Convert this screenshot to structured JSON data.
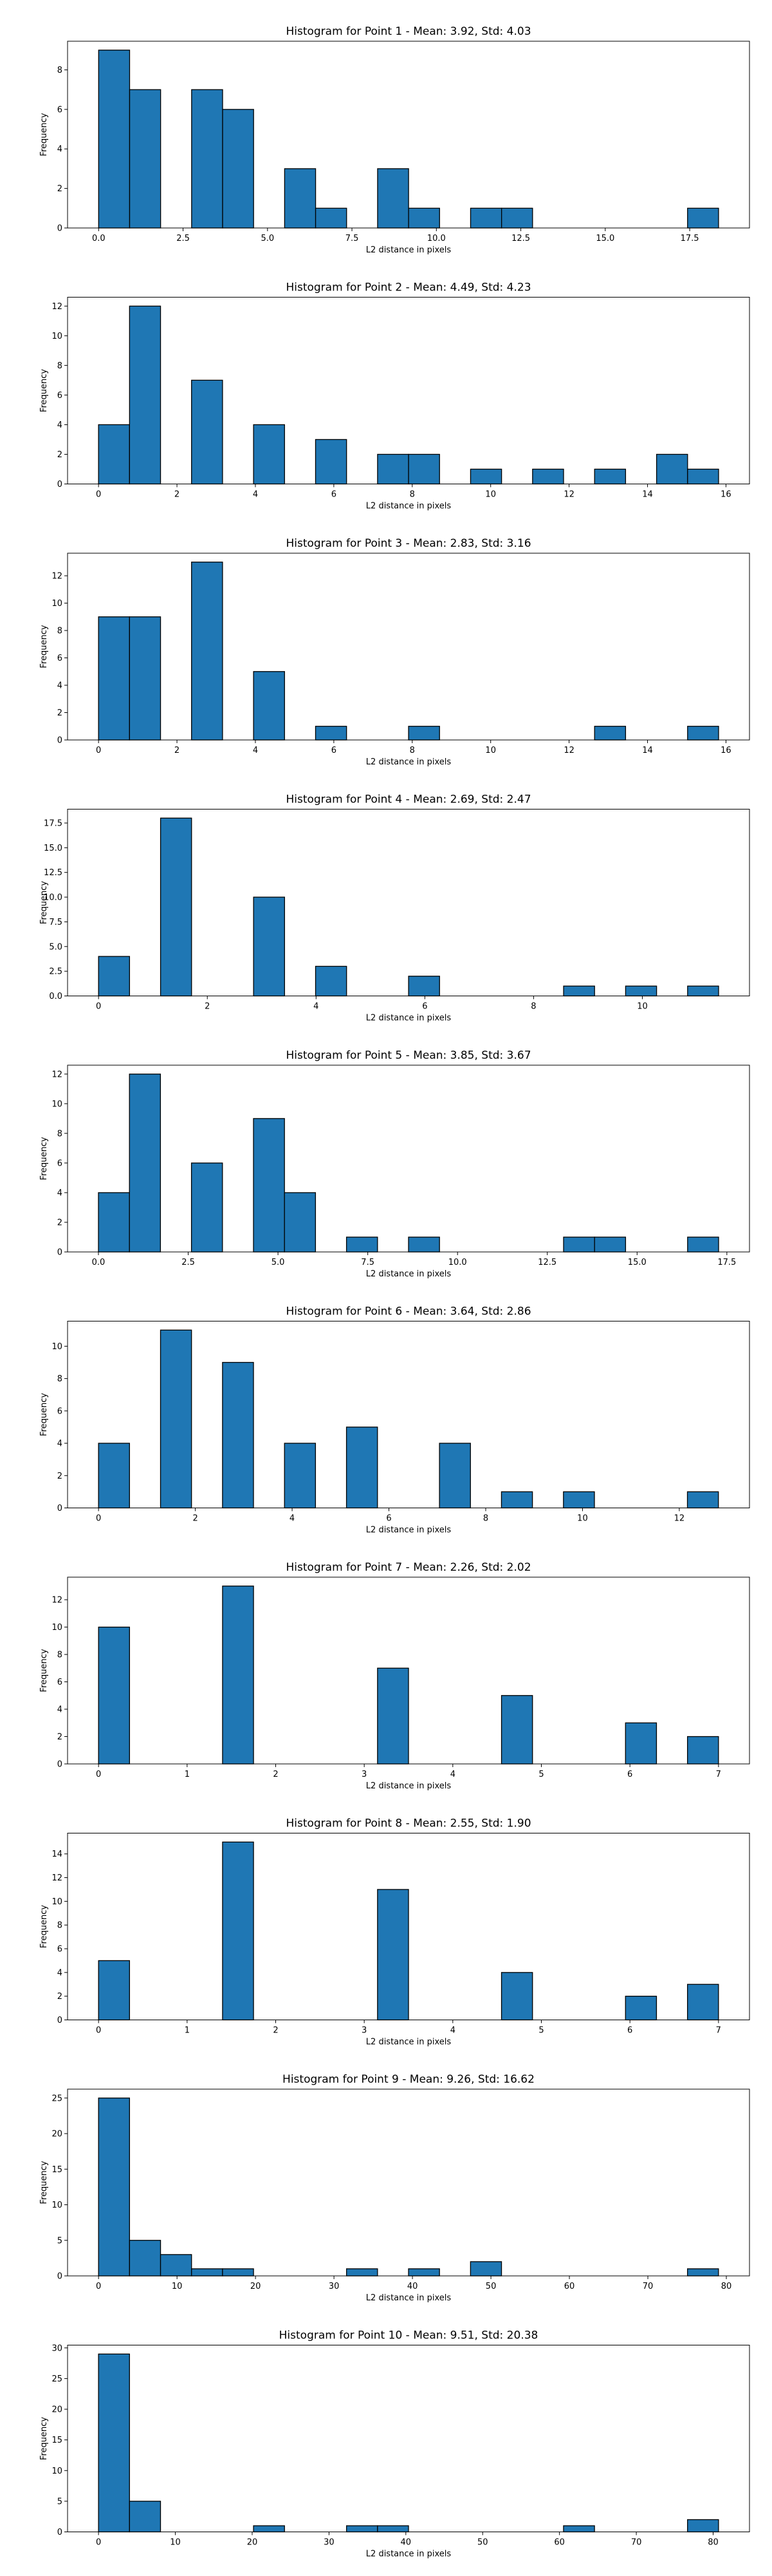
{
  "figure": {
    "bar_color": "#1f77b4",
    "edge_color": "#000000",
    "background": "#ffffff"
  },
  "chart_data": [
    {
      "type": "bar",
      "title": "Histogram for Point 1 - Mean: 3.92, Std: 4.03",
      "xlabel": "L2 distance in pixels",
      "ylabel": "Frequency",
      "x_start": 0.0,
      "bin_width": 0.9177,
      "counts": [
        9,
        7,
        0,
        7,
        6,
        0,
        3,
        1,
        0,
        3,
        1,
        0,
        1,
        1,
        0,
        0,
        0,
        0,
        0,
        1
      ],
      "xlim": [
        -0.92,
        19.27
      ],
      "ylim": [
        0,
        9.45
      ],
      "xticks": [
        0,
        2.5,
        5,
        7.5,
        10,
        12.5,
        15,
        17.5
      ],
      "xtick_labels": [
        "0.0",
        "2.5",
        "5.0",
        "7.5",
        "10.0",
        "12.5",
        "15.0",
        "17.5"
      ],
      "yticks": [
        0,
        2,
        4,
        6,
        8
      ],
      "ytick_labels": [
        "0",
        "2",
        "4",
        "6",
        "8"
      ]
    },
    {
      "type": "bar",
      "title": "Histogram for Point 2 - Mean: 4.49, Std: 4.23",
      "xlabel": "L2 distance in pixels",
      "ylabel": "Frequency",
      "x_start": 0.0,
      "bin_width": 0.7906,
      "counts": [
        4,
        12,
        0,
        7,
        0,
        4,
        0,
        3,
        0,
        2,
        2,
        0,
        1,
        0,
        1,
        0,
        1,
        0,
        2,
        1
      ],
      "xlim": [
        -0.79,
        16.6
      ],
      "ylim": [
        0,
        12.6
      ],
      "xticks": [
        0,
        2,
        4,
        6,
        8,
        10,
        12,
        14,
        16
      ],
      "xtick_labels": [
        "0",
        "2",
        "4",
        "6",
        "8",
        "10",
        "12",
        "14",
        "16"
      ],
      "yticks": [
        0,
        2,
        4,
        6,
        8,
        10,
        12
      ],
      "ytick_labels": [
        "0",
        "2",
        "4",
        "6",
        "8",
        "10",
        "12"
      ]
    },
    {
      "type": "bar",
      "title": "Histogram for Point 3 - Mean: 2.83, Std: 3.16",
      "xlabel": "L2 distance in pixels",
      "ylabel": "Frequency",
      "x_start": 0.0,
      "bin_width": 0.7906,
      "counts": [
        9,
        9,
        0,
        13,
        0,
        5,
        0,
        1,
        0,
        0,
        1,
        0,
        0,
        0,
        0,
        0,
        1,
        0,
        0,
        1
      ],
      "xlim": [
        -0.79,
        16.6
      ],
      "ylim": [
        0,
        13.65
      ],
      "xticks": [
        0,
        2,
        4,
        6,
        8,
        10,
        12,
        14,
        16
      ],
      "xtick_labels": [
        "0",
        "2",
        "4",
        "6",
        "8",
        "10",
        "12",
        "14",
        "16"
      ],
      "yticks": [
        0,
        2,
        4,
        6,
        8,
        10,
        12
      ],
      "ytick_labels": [
        "0",
        "2",
        "4",
        "6",
        "8",
        "10",
        "12"
      ]
    },
    {
      "type": "bar",
      "title": "Histogram for Point 4 - Mean: 2.69, Std: 2.47",
      "xlabel": "L2 distance in pixels",
      "ylabel": "Frequency",
      "x_start": 0.0,
      "bin_width": 0.5701,
      "counts": [
        4,
        0,
        18,
        0,
        0,
        10,
        0,
        3,
        0,
        0,
        2,
        0,
        0,
        0,
        0,
        1,
        0,
        1,
        0,
        1
      ],
      "xlim": [
        -0.57,
        11.97
      ],
      "ylim": [
        0,
        18.9
      ],
      "xticks": [
        0,
        2,
        4,
        6,
        8,
        10
      ],
      "xtick_labels": [
        "0",
        "2",
        "4",
        "6",
        "8",
        "10"
      ],
      "yticks": [
        0,
        2.5,
        5,
        7.5,
        10,
        12.5,
        15,
        17.5
      ],
      "ytick_labels": [
        "0.0",
        "2.5",
        "5.0",
        "7.5",
        "10.0",
        "12.5",
        "15.0",
        "17.5"
      ]
    },
    {
      "type": "bar",
      "title": "Histogram for Point 5 - Mean: 3.85, Std: 3.67",
      "xlabel": "L2 distance in pixels",
      "ylabel": "Frequency",
      "x_start": 0.0,
      "bin_width": 0.8635,
      "counts": [
        4,
        12,
        0,
        6,
        0,
        9,
        4,
        0,
        1,
        0,
        1,
        0,
        0,
        0,
        0,
        1,
        1,
        0,
        0,
        1
      ],
      "xlim": [
        -0.86,
        18.13
      ],
      "ylim": [
        0,
        12.6
      ],
      "xticks": [
        0,
        2.5,
        5,
        7.5,
        10,
        12.5,
        15,
        17.5
      ],
      "xtick_labels": [
        "0.0",
        "2.5",
        "5.0",
        "7.5",
        "10.0",
        "12.5",
        "15.0",
        "17.5"
      ],
      "yticks": [
        0,
        2,
        4,
        6,
        8,
        10,
        12
      ],
      "ytick_labels": [
        "0",
        "2",
        "4",
        "6",
        "8",
        "10",
        "12"
      ]
    },
    {
      "type": "bar",
      "title": "Histogram for Point 6 - Mean: 3.64, Std: 2.86",
      "xlabel": "L2 distance in pixels",
      "ylabel": "Frequency",
      "x_start": 0.0,
      "bin_width": 0.6404,
      "counts": [
        4,
        0,
        11,
        0,
        9,
        0,
        4,
        0,
        5,
        0,
        0,
        4,
        0,
        1,
        0,
        1,
        0,
        0,
        0,
        1
      ],
      "xlim": [
        -0.64,
        13.45
      ],
      "ylim": [
        0,
        11.55
      ],
      "xticks": [
        0,
        2,
        4,
        6,
        8,
        10,
        12
      ],
      "xtick_labels": [
        "0",
        "2",
        "4",
        "6",
        "8",
        "10",
        "12"
      ],
      "yticks": [
        0,
        2,
        4,
        6,
        8,
        10
      ],
      "ytick_labels": [
        "0",
        "2",
        "4",
        "6",
        "8",
        "10"
      ]
    },
    {
      "type": "bar",
      "title": "Histogram for Point 7 - Mean: 2.26, Std: 2.02",
      "xlabel": "L2 distance in pixels",
      "ylabel": "Frequency",
      "x_start": 0.0,
      "bin_width": 0.35,
      "counts": [
        10,
        0,
        0,
        0,
        13,
        0,
        0,
        0,
        0,
        7,
        0,
        0,
        0,
        5,
        0,
        0,
        0,
        3,
        0,
        2
      ],
      "xlim": [
        -0.35,
        7.35
      ],
      "ylim": [
        0,
        13.65
      ],
      "xticks": [
        0,
        1,
        2,
        3,
        4,
        5,
        6,
        7
      ],
      "xtick_labels": [
        "0",
        "1",
        "2",
        "3",
        "4",
        "5",
        "6",
        "7"
      ],
      "yticks": [
        0,
        2,
        4,
        6,
        8,
        10,
        12
      ],
      "ytick_labels": [
        "0",
        "2",
        "4",
        "6",
        "8",
        "10",
        "12"
      ]
    },
    {
      "type": "bar",
      "title": "Histogram for Point 8 - Mean: 2.55, Std: 1.90",
      "xlabel": "L2 distance in pixels",
      "ylabel": "Frequency",
      "x_start": 0.0,
      "bin_width": 0.35,
      "counts": [
        5,
        0,
        0,
        0,
        15,
        0,
        0,
        0,
        0,
        11,
        0,
        0,
        0,
        4,
        0,
        0,
        0,
        2,
        0,
        3
      ],
      "xlim": [
        -0.35,
        7.35
      ],
      "ylim": [
        0,
        15.75
      ],
      "xticks": [
        0,
        1,
        2,
        3,
        4,
        5,
        6,
        7
      ],
      "xtick_labels": [
        "0",
        "1",
        "2",
        "3",
        "4",
        "5",
        "6",
        "7"
      ],
      "yticks": [
        0,
        2,
        4,
        6,
        8,
        10,
        12,
        14
      ],
      "ytick_labels": [
        "0",
        "2",
        "4",
        "6",
        "8",
        "10",
        "12",
        "14"
      ]
    },
    {
      "type": "bar",
      "title": "Histogram for Point 9 - Mean: 9.26, Std: 16.62",
      "xlabel": "L2 distance in pixels",
      "ylabel": "Frequency",
      "x_start": 0.0,
      "bin_width": 3.95,
      "counts": [
        25,
        5,
        3,
        1,
        1,
        0,
        0,
        0,
        1,
        0,
        1,
        0,
        2,
        0,
        0,
        0,
        0,
        0,
        0,
        1
      ],
      "xlim": [
        -3.95,
        82.95
      ],
      "ylim": [
        0,
        26.25
      ],
      "xticks": [
        0,
        10,
        20,
        30,
        40,
        50,
        60,
        70,
        80
      ],
      "xtick_labels": [
        "0",
        "10",
        "20",
        "30",
        "40",
        "50",
        "60",
        "70",
        "80"
      ],
      "yticks": [
        0,
        5,
        10,
        15,
        20,
        25
      ],
      "ytick_labels": [
        "0",
        "5",
        "10",
        "15",
        "20",
        "25"
      ]
    },
    {
      "type": "bar",
      "title": "Histogram for Point 10 - Mean: 9.51, Std: 20.38",
      "xlabel": "L2 distance in pixels",
      "ylabel": "Frequency",
      "x_start": 0.0,
      "bin_width": 4.035,
      "counts": [
        29,
        5,
        0,
        0,
        0,
        1,
        0,
        0,
        1,
        1,
        0,
        0,
        0,
        0,
        0,
        1,
        0,
        0,
        0,
        2
      ],
      "xlim": [
        -4.03,
        84.73
      ],
      "ylim": [
        0,
        30.45
      ],
      "xticks": [
        0,
        10,
        20,
        30,
        40,
        50,
        60,
        70,
        80
      ],
      "xtick_labels": [
        "0",
        "10",
        "20",
        "30",
        "40",
        "50",
        "60",
        "70",
        "80"
      ],
      "yticks": [
        0,
        5,
        10,
        15,
        20,
        25,
        30
      ],
      "ytick_labels": [
        "0",
        "5",
        "10",
        "15",
        "20",
        "25",
        "30"
      ]
    }
  ]
}
